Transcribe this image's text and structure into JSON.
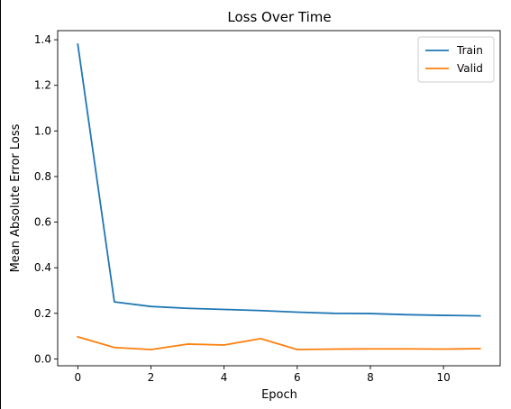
{
  "chart_data": {
    "type": "line",
    "title": "Loss Over Time",
    "xlabel": "Epoch",
    "ylabel": "Mean Absolute Error Loss",
    "x": [
      0,
      1,
      2,
      3,
      4,
      5,
      6,
      7,
      8,
      9,
      10,
      11
    ],
    "series": [
      {
        "name": "Train",
        "color": "#1f77b4",
        "values": [
          1.38,
          0.25,
          0.23,
          0.222,
          0.217,
          0.212,
          0.205,
          0.2,
          0.199,
          0.194,
          0.191,
          0.189
        ]
      },
      {
        "name": "Valid",
        "color": "#ff7f0e",
        "values": [
          0.097,
          0.05,
          0.041,
          0.065,
          0.061,
          0.089,
          0.041,
          0.043,
          0.044,
          0.044,
          0.043,
          0.045
        ]
      }
    ],
    "xlim": [
      -0.55,
      11.55
    ],
    "ylim": [
      -0.03,
      1.44
    ],
    "xticks": [
      0,
      2,
      4,
      6,
      8,
      10
    ],
    "xtick_labels": [
      "0",
      "2",
      "4",
      "6",
      "8",
      "10"
    ],
    "yticks": [
      0.0,
      0.2,
      0.4,
      0.6,
      0.8,
      1.0,
      1.2,
      1.4
    ],
    "ytick_labels": [
      "0.0",
      "0.2",
      "0.4",
      "0.6",
      "0.8",
      "1.0",
      "1.2",
      "1.4"
    ],
    "grid": false,
    "legend_position": "top-right"
  }
}
